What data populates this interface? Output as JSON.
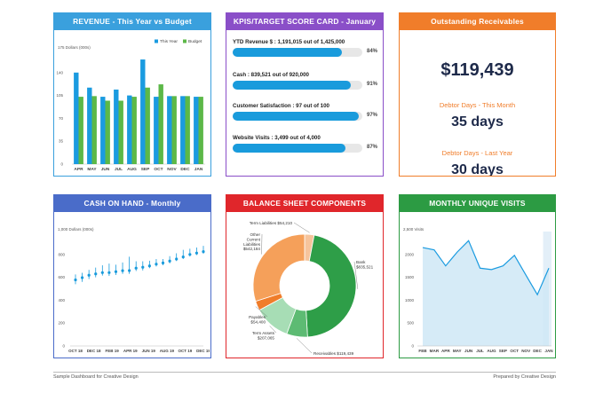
{
  "colors": {
    "revenue_header": "#3aa0dd",
    "kpi_header": "#8a4fc8",
    "ar_header": "#f07d2a",
    "cash_header": "#4a6cc9",
    "balance_header": "#e0262b",
    "visits_header": "#2c9b43",
    "this_year": "#1a9be0",
    "budget": "#5cb848",
    "kpi_fill": "#199bdc",
    "cash_color": "#199bdc",
    "visits_line": "#1a9be0",
    "visits_area": "#cfe8f6"
  },
  "panels": {
    "revenue": {
      "title": "REVENUE - This Year vs Budget"
    },
    "kpi": {
      "title": "KPIS/TARGET SCORE CARD - January"
    },
    "receivables": {
      "title": "Outstanding Receivables"
    },
    "cash": {
      "title": "CASH ON HAND - Monthly"
    },
    "balance": {
      "title": "BALANCE SHEET COMPONENTS"
    },
    "visits": {
      "title": "MONTHLY UNIQUE VISITS"
    }
  },
  "kpis": [
    {
      "label": "YTD Revenue $ : 1,191,015 out of 1,425,000",
      "pct_label": "84%",
      "fraction": 0.84
    },
    {
      "label": "Cash : 839,521 out of 920,000",
      "pct_label": "91%",
      "fraction": 0.91
    },
    {
      "label": "Customer Satisfaction : 97 out of 100",
      "pct_label": "97%",
      "fraction": 0.97
    },
    {
      "label": "Website Visits : 3,499 out of 4,000",
      "pct_label": "87%",
      "fraction": 0.87
    }
  ],
  "receivables": {
    "amount": "$119,439",
    "this_month_label": "Debtor Days - This Month",
    "this_month_value": "35 days",
    "last_year_label": "Debtor Days - Last Year",
    "last_year_value": "30 days"
  },
  "footer": {
    "left": "Sample Dashboard for Creative Design",
    "right": "Prepared by Creative Design"
  },
  "chart_data": [
    {
      "id": "revenue",
      "type": "bar",
      "title": "REVENUE - This Year vs Budget",
      "ylabel": "175 Dollars (000s)",
      "ylim": [
        0,
        175
      ],
      "yticks": [
        0,
        35,
        70,
        105,
        140
      ],
      "categories": [
        "APR",
        "MAY",
        "JUN",
        "JUL",
        "AUG",
        "SEP",
        "OCT",
        "NOV",
        "DEC",
        "JAN"
      ],
      "series": [
        {
          "name": "This Year",
          "values": [
            140,
            117,
            103,
            114,
            105,
            160,
            103,
            104,
            104,
            103
          ]
        },
        {
          "name": "Budget",
          "values": [
            103,
            104,
            97,
            97,
            103,
            117,
            122,
            104,
            104,
            103
          ]
        }
      ],
      "legend": "top-right",
      "grid": false
    },
    {
      "id": "cash",
      "type": "scatter",
      "title": "CASH ON HAND - Monthly",
      "ylabel": "1,000 Dollars (000s)",
      "ylim": [
        0,
        1000
      ],
      "yticks": [
        0,
        200,
        400,
        600,
        800
      ],
      "x_tick_labels": [
        "OCT 18",
        "DEC 18",
        "FEB 19",
        "APR 19",
        "JUN 19",
        "AUG 19",
        "OCT 19",
        "DEC 19"
      ],
      "values": [
        578,
        597,
        618,
        630,
        641,
        641,
        649,
        658,
        659,
        680,
        688,
        700,
        715,
        726,
        742,
        760,
        778,
        800,
        812,
        825
      ],
      "low": [
        540,
        560,
        585,
        600,
        615,
        612,
        620,
        630,
        630,
        655,
        660,
        680,
        695,
        705,
        722,
        742,
        760,
        782,
        795,
        805
      ],
      "high": [
        625,
        640,
        665,
        685,
        705,
        720,
        710,
        730,
        780,
        740,
        740,
        745,
        760,
        760,
        785,
        810,
        840,
        850,
        860,
        875
      ],
      "grid": false
    },
    {
      "id": "balance",
      "type": "pie",
      "title": "BALANCE SHEET COMPONENTS",
      "slices": [
        {
          "label": "Term Liabilities",
          "display_value": "$54,210",
          "value": 54210,
          "color": "#f6c49c"
        },
        {
          "label": "Bank",
          "display_value": "$835,521",
          "value": 835521,
          "color": "#2e9e48"
        },
        {
          "label": "Receivables",
          "display_value": "$119,439",
          "value": 119439,
          "color": "#5dbb73"
        },
        {
          "label": "Term Assets",
          "display_value": "$207,065",
          "value": 207065,
          "color": "#a7ddb5"
        },
        {
          "label": "Payables",
          "display_value": "$54,400",
          "value": 54400,
          "color": "#f07d2a"
        },
        {
          "label": "Other Current Liabilities",
          "display_value": "$542,184",
          "value": 542184,
          "color": "#f5a05a"
        }
      ],
      "donut": true
    },
    {
      "id": "visits",
      "type": "area",
      "title": "MONTHLY UNIQUE VISITS",
      "ylabel": "2,500 Visits",
      "ylim": [
        0,
        2500
      ],
      "yticks": [
        0,
        500,
        1000,
        1500,
        2000
      ],
      "categories": [
        "FEB",
        "MAR",
        "APR",
        "MAY",
        "JUN",
        "JUL",
        "AUG",
        "SEP",
        "OCT",
        "NOV",
        "DEC",
        "JAN"
      ],
      "values": [
        2150,
        2100,
        1750,
        2050,
        2300,
        1700,
        1670,
        1750,
        1980,
        1550,
        1120,
        1700
      ],
      "grid": false
    }
  ]
}
